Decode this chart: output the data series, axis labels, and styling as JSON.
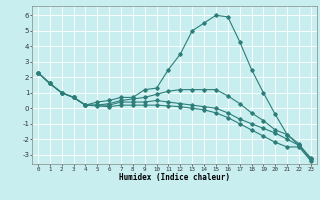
{
  "xlabel": "Humidex (Indice chaleur)",
  "background_color": "#c8eef0",
  "grid_color": "#ffffff",
  "line_color": "#2d7d78",
  "xlim": [
    -0.5,
    23.5
  ],
  "ylim": [
    -3.6,
    6.6
  ],
  "xticks": [
    0,
    1,
    2,
    3,
    4,
    5,
    6,
    7,
    8,
    9,
    10,
    11,
    12,
    13,
    14,
    15,
    16,
    17,
    18,
    19,
    20,
    21,
    22,
    23
  ],
  "yticks": [
    -3,
    -2,
    -1,
    0,
    1,
    2,
    3,
    4,
    5,
    6
  ],
  "lines": [
    {
      "x": [
        0,
        1,
        2,
        3,
        4,
        5,
        6,
        7,
        8,
        9,
        10,
        11,
        12,
        13,
        14,
        15,
        16,
        17,
        18,
        19,
        20,
        21,
        22,
        23
      ],
      "y": [
        2.3,
        1.6,
        1.0,
        0.7,
        0.2,
        0.4,
        0.5,
        0.7,
        0.7,
        1.2,
        1.3,
        2.5,
        3.5,
        5.0,
        5.5,
        6.0,
        5.9,
        4.3,
        2.5,
        1.0,
        -0.4,
        -1.7,
        -2.4,
        -3.2
      ]
    },
    {
      "x": [
        0,
        1,
        2,
        3,
        4,
        5,
        6,
        7,
        8,
        9,
        10,
        11,
        12,
        13,
        14,
        15,
        16,
        17,
        18,
        19,
        20,
        21,
        22,
        23
      ],
      "y": [
        2.3,
        1.6,
        1.0,
        0.7,
        0.2,
        0.2,
        0.3,
        0.5,
        0.6,
        0.7,
        0.9,
        1.1,
        1.2,
        1.2,
        1.2,
        1.2,
        0.8,
        0.3,
        -0.3,
        -0.8,
        -1.4,
        -1.7,
        -2.3,
        -3.3
      ]
    },
    {
      "x": [
        0,
        1,
        2,
        3,
        4,
        5,
        6,
        7,
        8,
        9,
        10,
        11,
        12,
        13,
        14,
        15,
        16,
        17,
        18,
        19,
        20,
        21,
        22,
        23
      ],
      "y": [
        2.3,
        1.6,
        1.0,
        0.7,
        0.2,
        0.2,
        0.2,
        0.4,
        0.4,
        0.4,
        0.5,
        0.4,
        0.3,
        0.2,
        0.1,
        0.0,
        -0.3,
        -0.7,
        -1.0,
        -1.3,
        -1.6,
        -2.0,
        -2.4,
        -3.3
      ]
    },
    {
      "x": [
        0,
        1,
        2,
        3,
        4,
        5,
        6,
        7,
        8,
        9,
        10,
        11,
        12,
        13,
        14,
        15,
        16,
        17,
        18,
        19,
        20,
        21,
        22,
        23
      ],
      "y": [
        2.3,
        1.6,
        1.0,
        0.7,
        0.2,
        0.15,
        0.1,
        0.2,
        0.2,
        0.2,
        0.2,
        0.15,
        0.1,
        0.0,
        -0.1,
        -0.3,
        -0.6,
        -1.0,
        -1.4,
        -1.8,
        -2.2,
        -2.5,
        -2.5,
        -3.4
      ]
    }
  ]
}
